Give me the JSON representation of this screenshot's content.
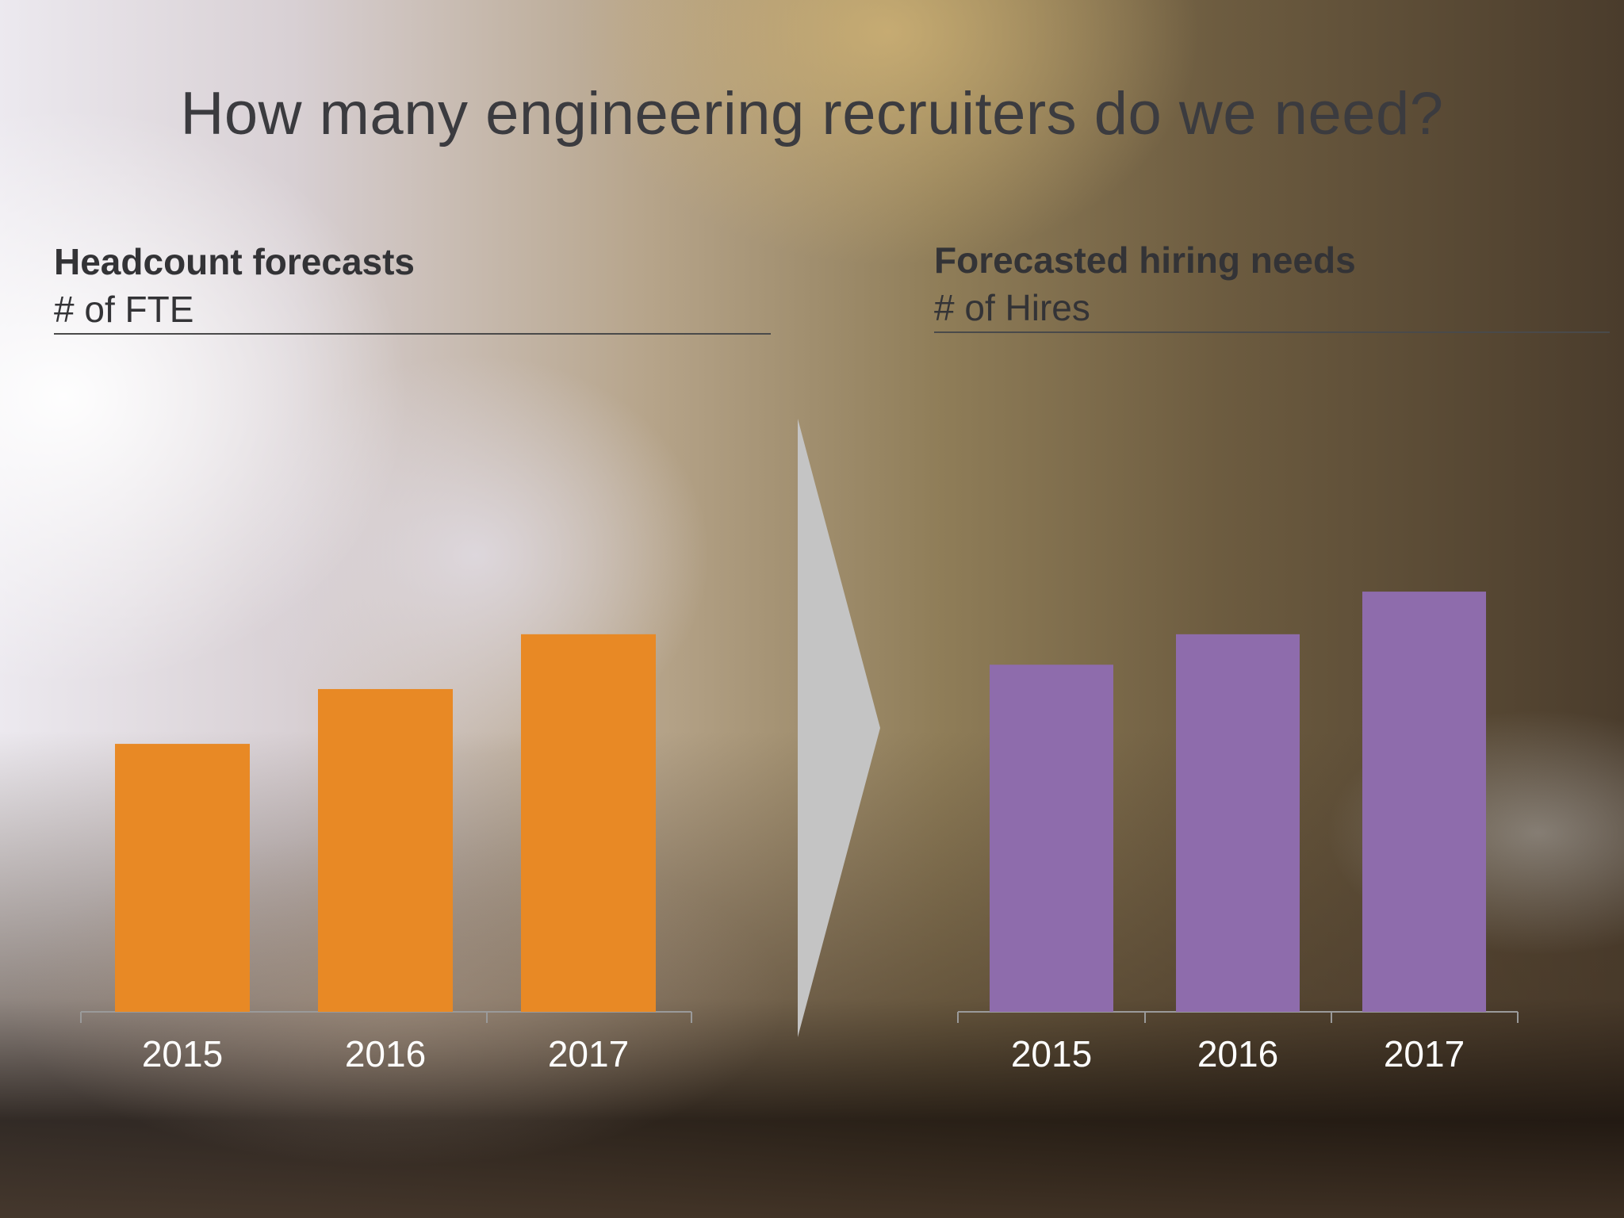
{
  "slide": {
    "title": "How many engineering recruiters do we need?"
  },
  "colors": {
    "headcount_bar": "#E88925",
    "hiring_bar": "#8E6CAC",
    "arrow": "#C4C4C4",
    "axis": "#9a9a9a",
    "heading_text": "#333336"
  },
  "left_panel": {
    "heading": "Headcount forecasts",
    "unit": "# of FTE"
  },
  "right_panel": {
    "heading": "Forecasted hiring needs",
    "unit": "# of Hires"
  },
  "chart_data": [
    {
      "type": "bar",
      "title": "Headcount forecasts",
      "subtitle": "# of FTE",
      "categories": [
        "2015",
        "2016",
        "2017"
      ],
      "values": [
        44,
        53,
        62
      ],
      "ylim": [
        0,
        100
      ],
      "value_labels_shown": false,
      "grid": false,
      "color": "#E88925"
    },
    {
      "type": "bar",
      "title": "Forecasted hiring needs",
      "subtitle": "# of Hires",
      "categories": [
        "2015",
        "2016",
        "2017"
      ],
      "values": [
        57,
        62,
        69
      ],
      "ylim": [
        0,
        100
      ],
      "value_labels_shown": false,
      "grid": false,
      "color": "#8E6CAC"
    }
  ]
}
